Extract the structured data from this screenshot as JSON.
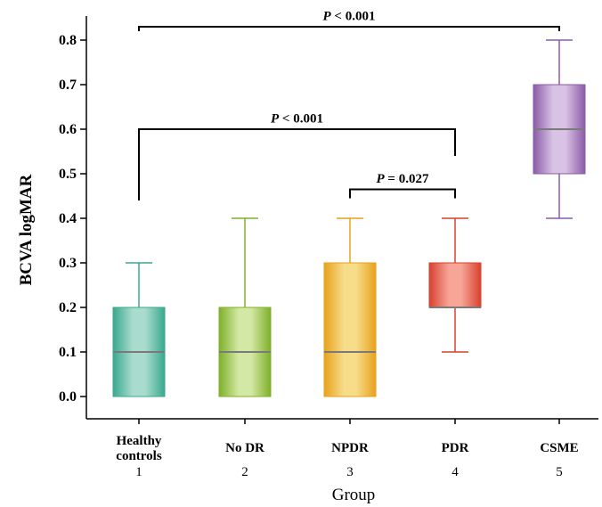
{
  "chart_data": {
    "type": "box",
    "ylabel": "BCVA logMAR",
    "xlabel": "Group",
    "ylim": [
      -0.05,
      0.85
    ],
    "y_ticks": [
      "0.0",
      "0.1",
      "0.2",
      "0.3",
      "0.4",
      "0.5",
      "0.6",
      "0.7",
      "0.8"
    ],
    "y_tick_values": [
      0,
      0.1,
      0.2,
      0.3,
      0.4,
      0.5,
      0.6,
      0.7,
      0.8
    ],
    "grid": false,
    "legend": "none",
    "groups": [
      {
        "name_lines": [
          "Healthy",
          "controls"
        ],
        "index": "1",
        "min": 0.0,
        "q1": 0.0,
        "median": 0.1,
        "q3": 0.2,
        "max": 0.3,
        "color": "#3aa88f",
        "light": "#a9dccd"
      },
      {
        "name_lines": [
          "No DR"
        ],
        "index": "2",
        "min": 0.0,
        "q1": 0.0,
        "median": 0.1,
        "q3": 0.2,
        "max": 0.4,
        "color": "#7fb02a",
        "light": "#d3e8a4"
      },
      {
        "name_lines": [
          "NPDR"
        ],
        "index": "3",
        "min": 0.0,
        "q1": 0.0,
        "median": 0.1,
        "q3": 0.3,
        "max": 0.4,
        "color": "#e8a21c",
        "light": "#f7dc8a"
      },
      {
        "name_lines": [
          "PDR"
        ],
        "index": "4",
        "min": 0.1,
        "q1": 0.2,
        "median": 0.2,
        "q3": 0.3,
        "max": 0.4,
        "color": "#d9412f",
        "light": "#f6a597"
      },
      {
        "name_lines": [
          "CSME"
        ],
        "index": "5",
        "min": 0.4,
        "q1": 0.5,
        "median": 0.6,
        "q3": 0.7,
        "max": 0.8,
        "color": "#8a5ba6",
        "light": "#d9c3e5"
      }
    ],
    "annotations": [
      {
        "from": 1,
        "to": 5,
        "label": "P < 0.001",
        "bracket_y": 0.83,
        "left_drop_to": 0.82,
        "right_drop_to": 0.82,
        "label_y": 0.845
      },
      {
        "from": 1,
        "to": 4,
        "label": "P < 0.001",
        "bracket_y": 0.6,
        "left_drop_to": 0.44,
        "right_drop_to": 0.54,
        "label_y": 0.615
      },
      {
        "from": 3,
        "to": 4,
        "label": "P = 0.027",
        "bracket_y": 0.465,
        "left_drop_to": 0.445,
        "right_drop_to": 0.445,
        "label_y": 0.48
      }
    ]
  }
}
